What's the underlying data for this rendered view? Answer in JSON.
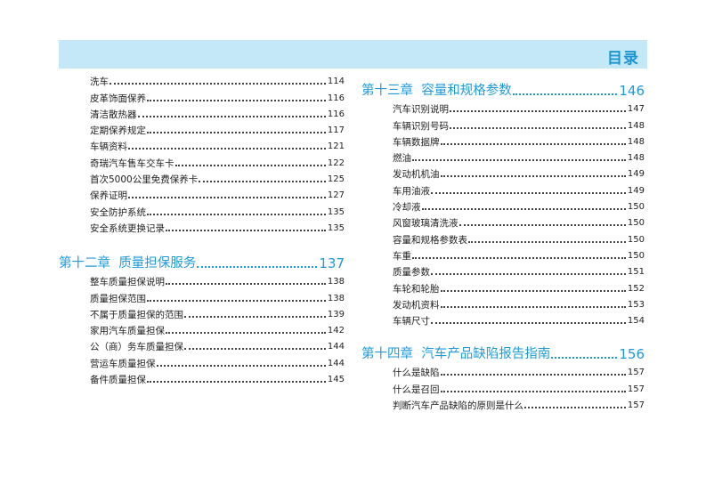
{
  "header": {
    "title": "目录",
    "band_color": "#c5e8f8",
    "accent_color": "#1f9ad6"
  },
  "left": {
    "entries": [
      {
        "label": "洗车",
        "page": "114"
      },
      {
        "label": "皮革饰面保养",
        "page": "116"
      },
      {
        "label": "清洁散热器",
        "page": "116"
      },
      {
        "label": "定期保养规定",
        "page": "117"
      },
      {
        "label": "车辆资料",
        "page": "121"
      },
      {
        "label": "奇瑞汽车售车交车卡",
        "page": "122"
      },
      {
        "label": "首次5000公里免费保养卡",
        "page": "125"
      },
      {
        "label": "保养证明",
        "page": "127"
      },
      {
        "label": "安全防护系统",
        "page": "135"
      },
      {
        "label": "安全系统更换记录",
        "page": "135"
      }
    ],
    "chapter12": {
      "title": "第十二章  质量担保服务",
      "page": "137",
      "entries": [
        {
          "label": "整车质量担保说明",
          "page": "138"
        },
        {
          "label": "质量担保范围",
          "page": "138"
        },
        {
          "label": "不属于质量担保的范围",
          "page": "139"
        },
        {
          "label": "家用汽车质量担保",
          "page": "142"
        },
        {
          "label": "公（商）务车质量担保",
          "page": "144"
        },
        {
          "label": "营运车质量担保",
          "page": "144"
        },
        {
          "label": "备件质量担保",
          "page": "145"
        }
      ]
    }
  },
  "right": {
    "chapter13": {
      "title": "第十三章  容量和规格参数",
      "page": "146",
      "entries": [
        {
          "label": "汽车识别说明",
          "page": "147"
        },
        {
          "label": "车辆识别号码",
          "page": "148"
        },
        {
          "label": "车辆数据牌",
          "page": "148"
        },
        {
          "label": "燃油",
          "page": "148"
        },
        {
          "label": "发动机机油",
          "page": "149"
        },
        {
          "label": "车用油液",
          "page": "149"
        },
        {
          "label": "冷却液",
          "page": "150"
        },
        {
          "label": "风窗玻璃清洗液",
          "page": "150"
        },
        {
          "label": "容量和规格参数表",
          "page": "150"
        },
        {
          "label": "车重",
          "page": "150"
        },
        {
          "label": "质量参数",
          "page": "151"
        },
        {
          "label": "车轮和轮胎",
          "page": "152"
        },
        {
          "label": "发动机资料",
          "page": "153"
        },
        {
          "label": "车辆尺寸",
          "page": "154"
        }
      ]
    },
    "chapter14": {
      "title": "第十四章  汽车产品缺陷报告指南",
      "page": "156",
      "entries": [
        {
          "label": "什么是缺陷",
          "page": "157"
        },
        {
          "label": "什么是召回",
          "page": "157"
        },
        {
          "label": "判断汽车产品缺陷的原则是什么",
          "page": "157"
        }
      ]
    }
  }
}
